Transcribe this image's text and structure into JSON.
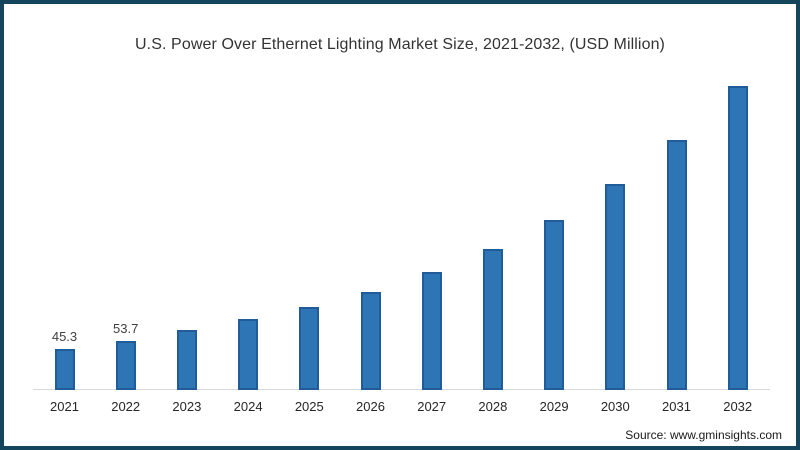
{
  "frame": {
    "background_color": "#ffffff",
    "border_color": "#15455c"
  },
  "title": "U.S. Power Over Ethernet Lighting Market Size, 2021-2032, (USD Million)",
  "source": "Source: www.gminsights.com",
  "chart_data": {
    "type": "bar",
    "title": "U.S. Power Over Ethernet Lighting Market Size, 2021-2032, (USD Million)",
    "categories": [
      "2021",
      "2022",
      "2023",
      "2024",
      "2025",
      "2026",
      "2027",
      "2028",
      "2029",
      "2030",
      "2031",
      "2032"
    ],
    "values": [
      45.3,
      53.7,
      65.3,
      77.6,
      91.1,
      107.9,
      129.3,
      154.9,
      186.9,
      226.3,
      274.4,
      333.7
    ],
    "data_labels": [
      "45.3",
      "53.7",
      "",
      "",
      "",
      "",
      "",
      "",
      "",
      "",
      "",
      ""
    ],
    "xlabel": "",
    "ylabel": "",
    "ylim": [
      0,
      362
    ],
    "grid": false,
    "legend": null,
    "y_axis_visible": false,
    "bar_fill_color": "#2e75b6",
    "bar_border_color": "#1f5c99",
    "axis_line_color": "#d9d9d9",
    "tick_label_color": "#262626",
    "value_label_color": "#3f3f3f",
    "title_color": "#333333",
    "source_color": "#1a1a1a"
  }
}
